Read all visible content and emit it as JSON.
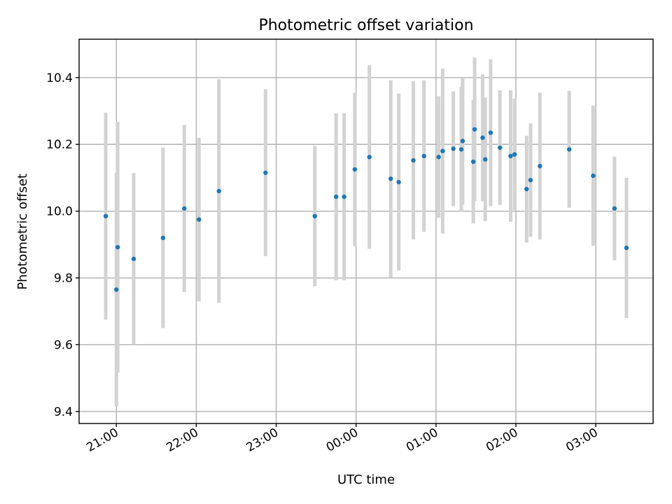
{
  "chart_data": {
    "type": "scatter",
    "title": "Photometric offset variation",
    "xlabel": "UTC time",
    "ylabel": "Photometric offset",
    "grid": true,
    "x_tick_labels": [
      "21:00",
      "22:00",
      "23:00",
      "00:00",
      "01:00",
      "02:00",
      "03:00"
    ],
    "x_tick_times": [
      "2000-01-01T21:00",
      "2000-01-01T22:00",
      "2000-01-01T23:00",
      "2000-01-02T00:00",
      "2000-01-02T01:00",
      "2000-01-02T02:00",
      "2000-01-02T03:00"
    ],
    "y_ticks": [
      9.4,
      9.6,
      9.8,
      10.0,
      10.2,
      10.4
    ],
    "y_tick_labels": [
      "9.4",
      "9.6",
      "9.8",
      "10.0",
      "10.2",
      "10.4"
    ],
    "xlim": [
      "2000-01-01T20:32",
      "2000-01-02T03:43"
    ],
    "ylim": [
      9.364,
      10.515
    ],
    "colors": {
      "marker": "#1f77b4",
      "errorbar": "#d3d3d3"
    },
    "series": [
      {
        "points": [
          {
            "x": "2000-01-01T20:52",
            "y": 9.985,
            "yerr": 0.31
          },
          {
            "x": "2000-01-01T21:00",
            "y": 9.765,
            "yerr": 0.35
          },
          {
            "x": "2000-01-01T21:01",
            "y": 9.892,
            "yerr": 0.375
          },
          {
            "x": "2000-01-01T21:13",
            "y": 9.857,
            "yerr": 0.257
          },
          {
            "x": "2000-01-01T21:35",
            "y": 9.92,
            "yerr": 0.27
          },
          {
            "x": "2000-01-01T21:51",
            "y": 10.008,
            "yerr": 0.25
          },
          {
            "x": "2000-01-01T22:02",
            "y": 9.975,
            "yerr": 0.245
          },
          {
            "x": "2000-01-01T22:17",
            "y": 10.06,
            "yerr": 0.335
          },
          {
            "x": "2000-01-01T22:52",
            "y": 10.115,
            "yerr": 0.25
          },
          {
            "x": "2000-01-01T23:29",
            "y": 9.985,
            "yerr": 0.21
          },
          {
            "x": "2000-01-01T23:45",
            "y": 10.043,
            "yerr": 0.25
          },
          {
            "x": "2000-01-01T23:51",
            "y": 10.043,
            "yerr": 0.25
          },
          {
            "x": "2000-01-01T23:59",
            "y": 10.125,
            "yerr": 0.23
          },
          {
            "x": "2000-01-02T00:10",
            "y": 10.162,
            "yerr": 0.275
          },
          {
            "x": "2000-01-02T00:26",
            "y": 10.097,
            "yerr": 0.295
          },
          {
            "x": "2000-01-02T00:32",
            "y": 10.087,
            "yerr": 0.265
          },
          {
            "x": "2000-01-02T00:43",
            "y": 10.152,
            "yerr": 0.237
          },
          {
            "x": "2000-01-02T00:51",
            "y": 10.165,
            "yerr": 0.227
          },
          {
            "x": "2000-01-02T01:02",
            "y": 10.162,
            "yerr": 0.182
          },
          {
            "x": "2000-01-02T01:05",
            "y": 10.18,
            "yerr": 0.247
          },
          {
            "x": "2000-01-02T01:13",
            "y": 10.187,
            "yerr": 0.172
          },
          {
            "x": "2000-01-02T01:19",
            "y": 10.185,
            "yerr": 0.187
          },
          {
            "x": "2000-01-02T01:20",
            "y": 10.21,
            "yerr": 0.19
          },
          {
            "x": "2000-01-02T01:28",
            "y": 10.148,
            "yerr": 0.185
          },
          {
            "x": "2000-01-02T01:29",
            "y": 10.245,
            "yerr": 0.215
          },
          {
            "x": "2000-01-02T01:35",
            "y": 10.22,
            "yerr": 0.19
          },
          {
            "x": "2000-01-02T01:37",
            "y": 10.155,
            "yerr": 0.185
          },
          {
            "x": "2000-01-02T01:41",
            "y": 10.235,
            "yerr": 0.22
          },
          {
            "x": "2000-01-02T01:48",
            "y": 10.19,
            "yerr": 0.172
          },
          {
            "x": "2000-01-02T01:56",
            "y": 10.165,
            "yerr": 0.197
          },
          {
            "x": "2000-01-02T01:59",
            "y": 10.17,
            "yerr": 0.167
          },
          {
            "x": "2000-01-02T02:08",
            "y": 10.066,
            "yerr": 0.16
          },
          {
            "x": "2000-01-02T02:11",
            "y": 10.093,
            "yerr": 0.17
          },
          {
            "x": "2000-01-02T02:18",
            "y": 10.135,
            "yerr": 0.22
          },
          {
            "x": "2000-01-02T02:40",
            "y": 10.185,
            "yerr": 0.175
          },
          {
            "x": "2000-01-02T02:58",
            "y": 10.106,
            "yerr": 0.21
          },
          {
            "x": "2000-01-02T03:14",
            "y": 10.008,
            "yerr": 0.155
          },
          {
            "x": "2000-01-02T03:23",
            "y": 9.89,
            "yerr": 0.21
          }
        ]
      }
    ]
  }
}
